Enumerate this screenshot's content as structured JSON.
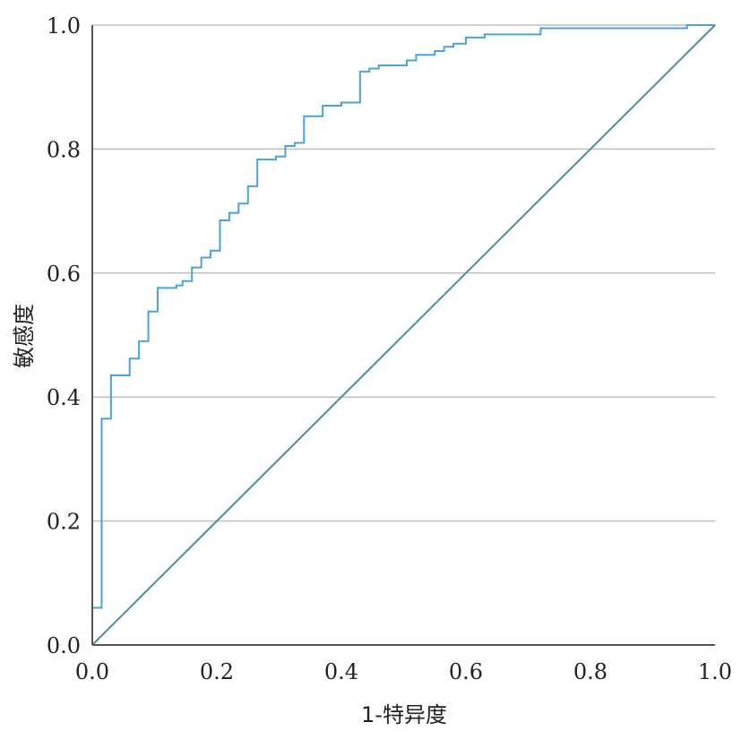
{
  "chart_data": {
    "type": "line",
    "title": "",
    "xlabel": "1-特异度",
    "ylabel": "敏感度",
    "xlim": [
      0,
      1
    ],
    "ylim": [
      0,
      1
    ],
    "xticks": [
      "0.0",
      "0.2",
      "0.4",
      "0.6",
      "0.8",
      "1.0"
    ],
    "yticks": [
      "0.0",
      "0.2",
      "0.4",
      "0.6",
      "0.8",
      "1.0"
    ],
    "grid": "horizontal",
    "legend": "none",
    "series": [
      {
        "color": "#4aa3d8",
        "step": true,
        "x": [
          0.0,
          0.0,
          0.015,
          0.015,
          0.03,
          0.03,
          0.06,
          0.06,
          0.075,
          0.075,
          0.09,
          0.09,
          0.105,
          0.105,
          0.135,
          0.135,
          0.145,
          0.145,
          0.16,
          0.16,
          0.175,
          0.175,
          0.19,
          0.19,
          0.205,
          0.205,
          0.22,
          0.22,
          0.235,
          0.235,
          0.25,
          0.25,
          0.265,
          0.265,
          0.295,
          0.295,
          0.31,
          0.31,
          0.325,
          0.325,
          0.34,
          0.34,
          0.37,
          0.37,
          0.4,
          0.4,
          0.43,
          0.43,
          0.445,
          0.445,
          0.46,
          0.46,
          0.505,
          0.505,
          0.52,
          0.52,
          0.55,
          0.55,
          0.565,
          0.565,
          0.58,
          0.58,
          0.6,
          0.6,
          0.63,
          0.63,
          0.72,
          0.72,
          0.955,
          0.955,
          1.0
        ],
        "y": [
          0.0,
          0.06,
          0.06,
          0.365,
          0.365,
          0.435,
          0.435,
          0.462,
          0.462,
          0.49,
          0.49,
          0.538,
          0.538,
          0.576,
          0.576,
          0.58,
          0.58,
          0.587,
          0.587,
          0.609,
          0.609,
          0.625,
          0.625,
          0.636,
          0.636,
          0.685,
          0.685,
          0.697,
          0.697,
          0.712,
          0.712,
          0.74,
          0.74,
          0.783,
          0.783,
          0.788,
          0.788,
          0.805,
          0.805,
          0.81,
          0.81,
          0.853,
          0.853,
          0.87,
          0.87,
          0.875,
          0.875,
          0.925,
          0.925,
          0.93,
          0.93,
          0.935,
          0.935,
          0.943,
          0.943,
          0.952,
          0.952,
          0.958,
          0.958,
          0.965,
          0.965,
          0.97,
          0.97,
          0.98,
          0.98,
          0.985,
          0.985,
          0.995,
          0.995,
          1.0,
          1.0
        ]
      },
      {
        "color": "#4a8f98",
        "step": false,
        "x": [
          0,
          1
        ],
        "y": [
          0,
          1
        ]
      }
    ]
  }
}
